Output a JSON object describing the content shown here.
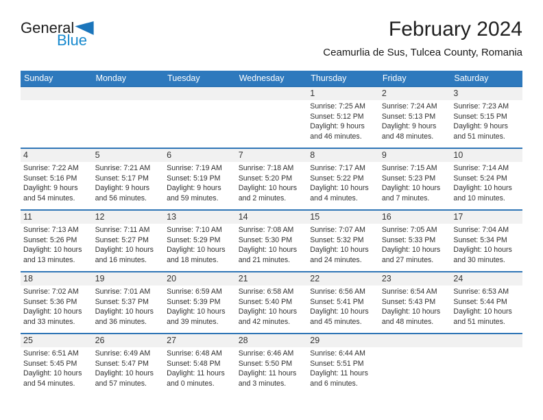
{
  "logo": {
    "general": "General",
    "blue": "Blue"
  },
  "header": {
    "title": "February 2024",
    "subtitle": "Ceamurlia de Sus, Tulcea County, Romania"
  },
  "colors": {
    "header_blue": "#2e79bd",
    "divider_blue": "#2e75b6",
    "band_gray": "#f1f1f1",
    "logo_blue": "#1789ce",
    "triangle_blue": "#1b75bb"
  },
  "calendar": {
    "day_headers": [
      "Sunday",
      "Monday",
      "Tuesday",
      "Wednesday",
      "Thursday",
      "Friday",
      "Saturday"
    ],
    "weeks": [
      [
        null,
        null,
        null,
        null,
        {
          "day": "1",
          "sunrise": "Sunrise: 7:25 AM",
          "sunset": "Sunset: 5:12 PM",
          "daylight": [
            "Daylight: 9 hours",
            "and 46 minutes."
          ]
        },
        {
          "day": "2",
          "sunrise": "Sunrise: 7:24 AM",
          "sunset": "Sunset: 5:13 PM",
          "daylight": [
            "Daylight: 9 hours",
            "and 48 minutes."
          ]
        },
        {
          "day": "3",
          "sunrise": "Sunrise: 7:23 AM",
          "sunset": "Sunset: 5:15 PM",
          "daylight": [
            "Daylight: 9 hours",
            "and 51 minutes."
          ]
        }
      ],
      [
        {
          "day": "4",
          "sunrise": "Sunrise: 7:22 AM",
          "sunset": "Sunset: 5:16 PM",
          "daylight": [
            "Daylight: 9 hours",
            "and 54 minutes."
          ]
        },
        {
          "day": "5",
          "sunrise": "Sunrise: 7:21 AM",
          "sunset": "Sunset: 5:17 PM",
          "daylight": [
            "Daylight: 9 hours",
            "and 56 minutes."
          ]
        },
        {
          "day": "6",
          "sunrise": "Sunrise: 7:19 AM",
          "sunset": "Sunset: 5:19 PM",
          "daylight": [
            "Daylight: 9 hours",
            "and 59 minutes."
          ]
        },
        {
          "day": "7",
          "sunrise": "Sunrise: 7:18 AM",
          "sunset": "Sunset: 5:20 PM",
          "daylight": [
            "Daylight: 10 hours",
            "and 2 minutes."
          ]
        },
        {
          "day": "8",
          "sunrise": "Sunrise: 7:17 AM",
          "sunset": "Sunset: 5:22 PM",
          "daylight": [
            "Daylight: 10 hours",
            "and 4 minutes."
          ]
        },
        {
          "day": "9",
          "sunrise": "Sunrise: 7:15 AM",
          "sunset": "Sunset: 5:23 PM",
          "daylight": [
            "Daylight: 10 hours",
            "and 7 minutes."
          ]
        },
        {
          "day": "10",
          "sunrise": "Sunrise: 7:14 AM",
          "sunset": "Sunset: 5:24 PM",
          "daylight": [
            "Daylight: 10 hours",
            "and 10 minutes."
          ]
        }
      ],
      [
        {
          "day": "11",
          "sunrise": "Sunrise: 7:13 AM",
          "sunset": "Sunset: 5:26 PM",
          "daylight": [
            "Daylight: 10 hours",
            "and 13 minutes."
          ]
        },
        {
          "day": "12",
          "sunrise": "Sunrise: 7:11 AM",
          "sunset": "Sunset: 5:27 PM",
          "daylight": [
            "Daylight: 10 hours",
            "and 16 minutes."
          ]
        },
        {
          "day": "13",
          "sunrise": "Sunrise: 7:10 AM",
          "sunset": "Sunset: 5:29 PM",
          "daylight": [
            "Daylight: 10 hours",
            "and 18 minutes."
          ]
        },
        {
          "day": "14",
          "sunrise": "Sunrise: 7:08 AM",
          "sunset": "Sunset: 5:30 PM",
          "daylight": [
            "Daylight: 10 hours",
            "and 21 minutes."
          ]
        },
        {
          "day": "15",
          "sunrise": "Sunrise: 7:07 AM",
          "sunset": "Sunset: 5:32 PM",
          "daylight": [
            "Daylight: 10 hours",
            "and 24 minutes."
          ]
        },
        {
          "day": "16",
          "sunrise": "Sunrise: 7:05 AM",
          "sunset": "Sunset: 5:33 PM",
          "daylight": [
            "Daylight: 10 hours",
            "and 27 minutes."
          ]
        },
        {
          "day": "17",
          "sunrise": "Sunrise: 7:04 AM",
          "sunset": "Sunset: 5:34 PM",
          "daylight": [
            "Daylight: 10 hours",
            "and 30 minutes."
          ]
        }
      ],
      [
        {
          "day": "18",
          "sunrise": "Sunrise: 7:02 AM",
          "sunset": "Sunset: 5:36 PM",
          "daylight": [
            "Daylight: 10 hours",
            "and 33 minutes."
          ]
        },
        {
          "day": "19",
          "sunrise": "Sunrise: 7:01 AM",
          "sunset": "Sunset: 5:37 PM",
          "daylight": [
            "Daylight: 10 hours",
            "and 36 minutes."
          ]
        },
        {
          "day": "20",
          "sunrise": "Sunrise: 6:59 AM",
          "sunset": "Sunset: 5:39 PM",
          "daylight": [
            "Daylight: 10 hours",
            "and 39 minutes."
          ]
        },
        {
          "day": "21",
          "sunrise": "Sunrise: 6:58 AM",
          "sunset": "Sunset: 5:40 PM",
          "daylight": [
            "Daylight: 10 hours",
            "and 42 minutes."
          ]
        },
        {
          "day": "22",
          "sunrise": "Sunrise: 6:56 AM",
          "sunset": "Sunset: 5:41 PM",
          "daylight": [
            "Daylight: 10 hours",
            "and 45 minutes."
          ]
        },
        {
          "day": "23",
          "sunrise": "Sunrise: 6:54 AM",
          "sunset": "Sunset: 5:43 PM",
          "daylight": [
            "Daylight: 10 hours",
            "and 48 minutes."
          ]
        },
        {
          "day": "24",
          "sunrise": "Sunrise: 6:53 AM",
          "sunset": "Sunset: 5:44 PM",
          "daylight": [
            "Daylight: 10 hours",
            "and 51 minutes."
          ]
        }
      ],
      [
        {
          "day": "25",
          "sunrise": "Sunrise: 6:51 AM",
          "sunset": "Sunset: 5:45 PM",
          "daylight": [
            "Daylight: 10 hours",
            "and 54 minutes."
          ]
        },
        {
          "day": "26",
          "sunrise": "Sunrise: 6:49 AM",
          "sunset": "Sunset: 5:47 PM",
          "daylight": [
            "Daylight: 10 hours",
            "and 57 minutes."
          ]
        },
        {
          "day": "27",
          "sunrise": "Sunrise: 6:48 AM",
          "sunset": "Sunset: 5:48 PM",
          "daylight": [
            "Daylight: 11 hours",
            "and 0 minutes."
          ]
        },
        {
          "day": "28",
          "sunrise": "Sunrise: 6:46 AM",
          "sunset": "Sunset: 5:50 PM",
          "daylight": [
            "Daylight: 11 hours",
            "and 3 minutes."
          ]
        },
        {
          "day": "29",
          "sunrise": "Sunrise: 6:44 AM",
          "sunset": "Sunset: 5:51 PM",
          "daylight": [
            "Daylight: 11 hours",
            "and 6 minutes."
          ]
        },
        null,
        null
      ]
    ]
  }
}
